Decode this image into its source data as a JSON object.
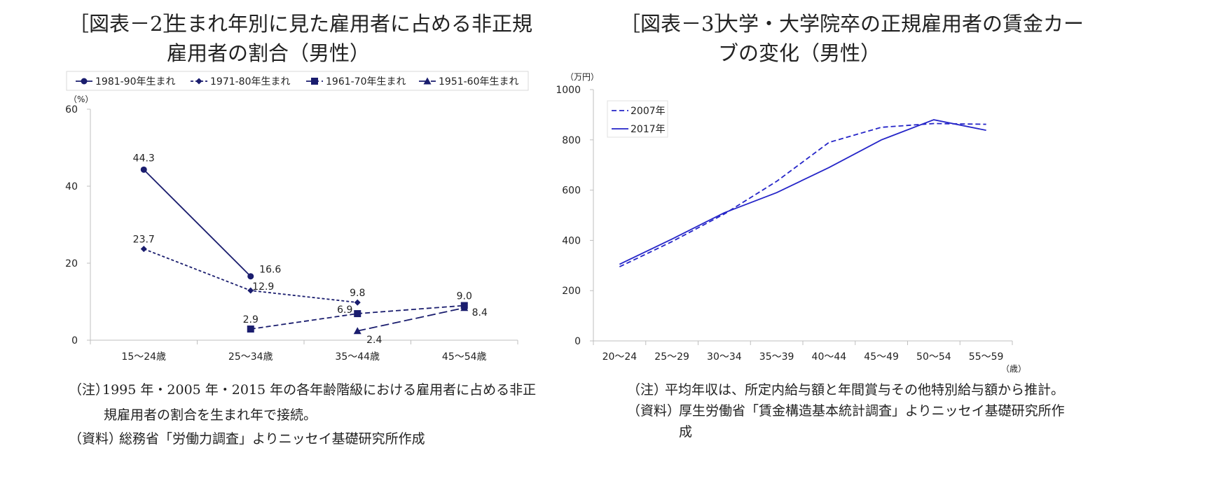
{
  "colors": {
    "navy": "#1a1d6e",
    "blue": "#2525c8",
    "axis": "#bfbfbf",
    "text": "#222222"
  },
  "left": {
    "title_tag": "［図表－2］",
    "title_line1": "生まれ年別に見た雇用者に占める非正規",
    "title_line2": "雇用者の割合（男性）",
    "note_label": "（注）",
    "note_line1": "1995 年・2005 年・2015 年の各年齢階級における雇用者に占める非正",
    "note_line2": "規雇用者の割合を生まれ年で接続。",
    "source_label": "（資料）",
    "source_text": "総務省「労働力調査」よりニッセイ基礎研究所作成"
  },
  "right": {
    "title_tag": "［図表－3］",
    "title_line1": "大学・大学院卒の正規雇用者の賃金カー",
    "title_line2": "ブの変化（男性）",
    "note_label": "（注）",
    "note_text": "平均年収は、所定内給与額と年間賞与その他特別給与額から推計。",
    "source_label": "（資料）",
    "source_line1": "厚生労働省「賃金構造基本統計調査」よりニッセイ基礎研究所作",
    "source_line2": "成"
  },
  "chart_data": [
    {
      "type": "line",
      "ylabel": "（%）",
      "ylim": [
        0,
        60
      ],
      "yticks": [
        "0",
        "20",
        "40",
        "60"
      ],
      "categories": [
        "15～24歳",
        "25～34歳",
        "35～44歳",
        "45～54歳"
      ],
      "legend_position": "top",
      "grid": false,
      "series": [
        {
          "name": "1981-90年生まれ",
          "marker": "circle",
          "dash": "solid",
          "values": [
            44.3,
            16.6,
            null,
            null
          ],
          "labels": [
            "44.3",
            "16.6",
            "",
            ""
          ]
        },
        {
          "name": "1971-80年生まれ",
          "marker": "diamond",
          "dash": "dotted",
          "values": [
            23.7,
            12.9,
            9.8,
            null
          ],
          "labels": [
            "23.7",
            "12.9",
            "9.8",
            ""
          ]
        },
        {
          "name": "1961-70年生まれ",
          "marker": "square",
          "dash": "dashed",
          "values": [
            null,
            2.9,
            6.9,
            9.0
          ],
          "labels": [
            "",
            "2.9",
            "6.9",
            "9.0"
          ]
        },
        {
          "name": "1951-60年生まれ",
          "marker": "triangle",
          "dash": "longdash",
          "values": [
            null,
            null,
            2.4,
            8.4
          ],
          "labels": [
            "",
            "",
            "2.4",
            "8.4"
          ]
        }
      ]
    },
    {
      "type": "line",
      "ylabel": "（万円）",
      "xlabel": "（歳）",
      "ylim": [
        0,
        1000
      ],
      "yticks": [
        "0",
        "200",
        "400",
        "600",
        "800",
        "1000"
      ],
      "categories": [
        "20～24",
        "25～29",
        "30～34",
        "35～39",
        "40～44",
        "45～49",
        "50～54",
        "55～59"
      ],
      "legend_position": "top-left",
      "grid": false,
      "series": [
        {
          "name": "2007年",
          "dash": "dashed",
          "values": [
            295,
            395,
            505,
            635,
            790,
            850,
            865,
            862
          ]
        },
        {
          "name": "2017年",
          "dash": "solid",
          "values": [
            305,
            405,
            510,
            590,
            690,
            800,
            880,
            838
          ]
        }
      ]
    }
  ]
}
